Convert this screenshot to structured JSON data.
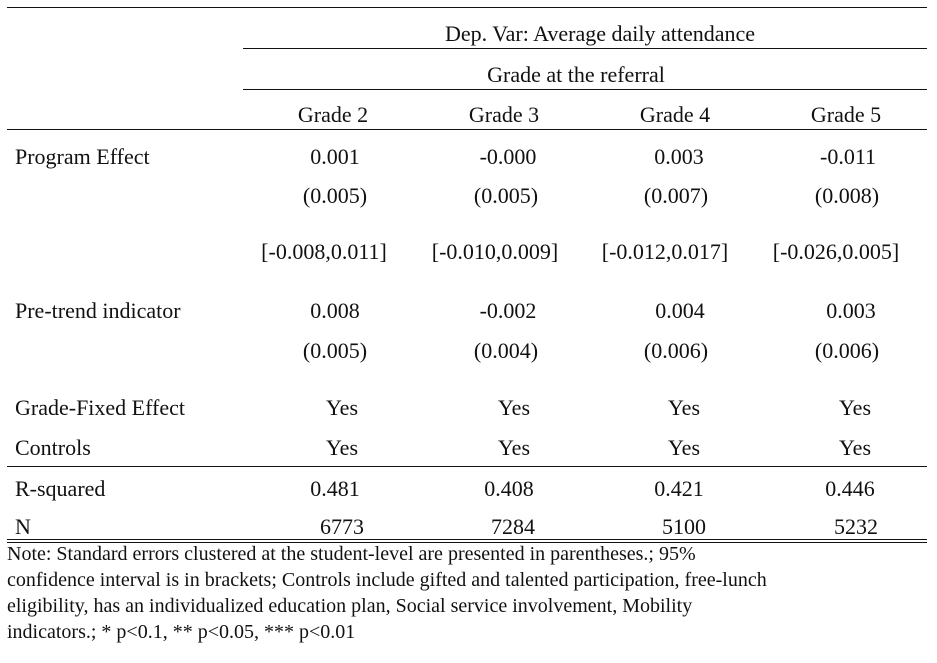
{
  "header": {
    "dep_var": "Dep. Var: Average daily attendance",
    "grade_group": "Grade at the referral",
    "columns": [
      "Grade 2",
      "Grade 3",
      "Grade 4",
      "Grade 5"
    ]
  },
  "rows": {
    "program_effect": {
      "label": "Program Effect",
      "coef": [
        "0.001",
        "-0.000",
        "0.003",
        "-0.011"
      ],
      "se": [
        "(0.005)",
        "(0.005)",
        "(0.007)",
        "(0.008)"
      ],
      "ci": [
        "[-0.008,0.011]",
        "[-0.010,0.009]",
        "[-0.012,0.017]",
        "[-0.026,0.005]"
      ]
    },
    "pre_trend": {
      "label": "Pre-trend indicator",
      "coef": [
        "0.008",
        "-0.002",
        "0.004",
        "0.003"
      ],
      "se": [
        "(0.005)",
        "(0.004)",
        "(0.006)",
        "(0.006)"
      ]
    },
    "grade_fe": {
      "label": "Grade-Fixed Effect",
      "values": [
        "Yes",
        "Yes",
        "Yes",
        "Yes"
      ]
    },
    "controls": {
      "label": "Controls",
      "values": [
        "Yes",
        "Yes",
        "Yes",
        "Yes"
      ]
    },
    "r_squared": {
      "label": "R-squared",
      "values": [
        "0.481",
        "0.408",
        "0.421",
        "0.446"
      ]
    },
    "n": {
      "label": "N",
      "values": [
        "6773",
        "7284",
        "5100",
        "5232"
      ]
    }
  },
  "note": {
    "line1": "Note: Standard errors clustered at the student-level are presented in parentheses.; 95%",
    "line2": "confidence interval is in brackets; Controls include gifted and talented participation, free-lunch",
    "line3": "eligibility, has an individualized education plan, Social service involvement, Mobility",
    "line4": "indicators.; * p<0.1, ** p<0.05, *** p<0.01"
  }
}
